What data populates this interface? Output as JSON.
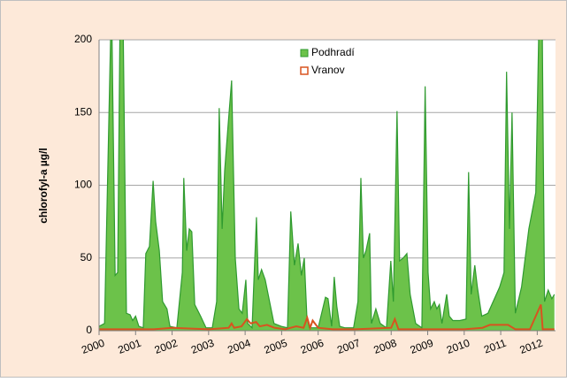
{
  "chart_data": {
    "type": "area",
    "ylabel": "chlorofyl-a   µg/l",
    "xlim": [
      2000,
      2012.5
    ],
    "xticks": [
      2000,
      2001,
      2002,
      2003,
      2004,
      2005,
      2006,
      2007,
      2008,
      2009,
      2010,
      2011,
      2012
    ],
    "ylim": [
      0,
      200
    ],
    "yticks": [
      0,
      50,
      100,
      150,
      200
    ],
    "grid": true,
    "legend": "top",
    "series": [
      {
        "name": "Podhradí",
        "color": "#6cc24a",
        "line_color": "#2f9a2f",
        "kind": "area",
        "x": [
          2000.0,
          2000.15,
          2000.34,
          2000.44,
          2000.51,
          2000.58,
          2000.65,
          2000.75,
          2000.85,
          2000.92,
          2001.0,
          2001.09,
          2001.21,
          2001.28,
          2001.38,
          2001.48,
          2001.55,
          2001.65,
          2001.74,
          2001.86,
          2001.94,
          2002.13,
          2002.28,
          2002.32,
          2002.4,
          2002.47,
          2002.54,
          2002.62,
          2002.78,
          2002.93,
          2003.1,
          2003.22,
          2003.29,
          2003.37,
          2003.44,
          2003.53,
          2003.63,
          2003.73,
          2003.83,
          2003.92,
          2004.02,
          2004.07,
          2004.19,
          2004.31,
          2004.36,
          2004.45,
          2004.55,
          2004.67,
          2004.79,
          2004.99,
          2005.16,
          2005.25,
          2005.35,
          2005.45,
          2005.54,
          2005.62,
          2005.69,
          2005.76,
          2006.0,
          2006.2,
          2006.27,
          2006.37,
          2006.44,
          2006.51,
          2006.59,
          2006.73,
          2006.97,
          2007.09,
          2007.17,
          2007.24,
          2007.31,
          2007.41,
          2007.46,
          2007.58,
          2007.7,
          2007.87,
          2007.99,
          2008.06,
          2008.16,
          2008.23,
          2008.33,
          2008.43,
          2008.52,
          2008.67,
          2008.84,
          2008.93,
          2009.01,
          2009.08,
          2009.18,
          2009.25,
          2009.32,
          2009.39,
          2009.52,
          2009.59,
          2009.69,
          2009.88,
          2010.05,
          2010.12,
          2010.19,
          2010.29,
          2010.36,
          2010.48,
          2010.65,
          2010.97,
          2011.09,
          2011.16,
          2011.24,
          2011.31,
          2011.4,
          2011.57,
          2011.77,
          2011.96,
          2012.06,
          2012.13,
          2012.2,
          2012.3,
          2012.4,
          2012.47
        ],
        "values": [
          3,
          5,
          230,
          38,
          40,
          230,
          230,
          12,
          11,
          7,
          10,
          3,
          2,
          53,
          58,
          103,
          75,
          55,
          20,
          15,
          3,
          2,
          40,
          105,
          55,
          70,
          68,
          18,
          10,
          2,
          2,
          20,
          153,
          70,
          110,
          140,
          172,
          50,
          15,
          12,
          35,
          5,
          2,
          78,
          35,
          42,
          35,
          20,
          5,
          3,
          2,
          82,
          45,
          60,
          38,
          50,
          10,
          2,
          2,
          23,
          22,
          3,
          37,
          17,
          3,
          2,
          2,
          20,
          105,
          50,
          55,
          67,
          5,
          15,
          5,
          2,
          48,
          20,
          151,
          48,
          50,
          53,
          25,
          5,
          2,
          168,
          40,
          15,
          20,
          15,
          18,
          5,
          25,
          10,
          7,
          7,
          8,
          109,
          25,
          45,
          30,
          10,
          12,
          30,
          40,
          178,
          70,
          150,
          12,
          30,
          70,
          95,
          230,
          230,
          20,
          28,
          22,
          25
        ]
      },
      {
        "name": "Vranov",
        "color": "#d8531f",
        "kind": "line",
        "x": [
          2000,
          2001.5,
          2002,
          2003,
          2003.55,
          2003.63,
          2003.7,
          2003.9,
          2004.05,
          2004.15,
          2004.3,
          2004.4,
          2004.6,
          2004.8,
          2005.1,
          2005.4,
          2005.6,
          2005.7,
          2005.78,
          2005.85,
          2006.0,
          2006.4,
          2007.0,
          2008.0,
          2008.1,
          2008.2,
          2009.0,
          2009.5,
          2010,
          2010.5,
          2010.7,
          2011.2,
          2011.4,
          2011.8,
          2012.1,
          2012.15,
          2012.47
        ],
        "values": [
          1,
          1,
          2,
          1,
          2,
          5,
          2,
          3,
          8,
          5,
          6,
          3,
          4,
          2,
          1,
          3,
          2,
          9,
          2,
          7,
          2,
          1,
          1,
          2,
          8,
          1,
          1,
          1,
          1,
          2,
          4,
          4,
          1,
          1,
          18,
          1,
          1
        ]
      }
    ]
  }
}
